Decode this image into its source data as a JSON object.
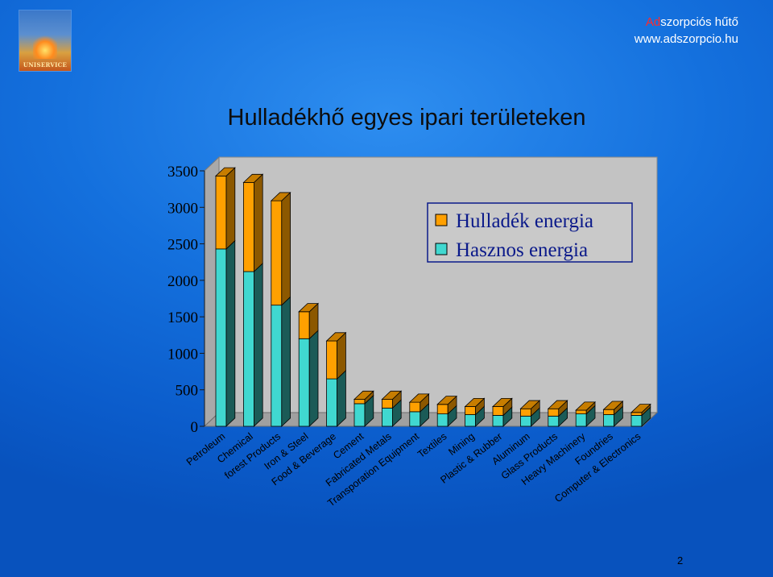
{
  "header": {
    "brand_ad": "Ad",
    "brand_rest": "szorpciós hűtő",
    "brand_url": "www.adszorpcio.hu",
    "logo_text": "UNISERVICE"
  },
  "slide": {
    "title": "Hulladékhő egyes ipari területeken",
    "page_number": "2"
  },
  "colors": {
    "waste": "#ffa000",
    "useful": "#40d8d0",
    "legend_border": "#0b1a8a"
  },
  "chart_data": {
    "type": "bar",
    "stacked": true,
    "three_d": true,
    "ylim": [
      0,
      3500
    ],
    "yticks": [
      "0",
      "500",
      "1000",
      "1500",
      "2000",
      "2500",
      "3000",
      "3500"
    ],
    "legend_position": "top-right",
    "categories": [
      "Petroleum",
      "Chemical",
      "forest Products",
      "Iron & Steel",
      "Food & Beverage",
      "Cement",
      "Fabricated Metals",
      "Transporation Equipment",
      "Textiles",
      "Mining",
      "Plastic & Rubber",
      "Aluminum",
      "Glass Products",
      "Heavy Machinery",
      "Foundries",
      "Computer & Electronics"
    ],
    "series": [
      {
        "name": "Hasznos energia",
        "color": "#40d8d0",
        "values": [
          2430,
          2120,
          1660,
          1200,
          650,
          310,
          250,
          200,
          170,
          160,
          150,
          140,
          140,
          170,
          160,
          150
        ]
      },
      {
        "name": "Hulladék energia",
        "color": "#ffa000",
        "values": [
          1000,
          1220,
          1430,
          370,
          520,
          60,
          120,
          130,
          130,
          110,
          120,
          100,
          100,
          50,
          70,
          40
        ]
      }
    ]
  }
}
